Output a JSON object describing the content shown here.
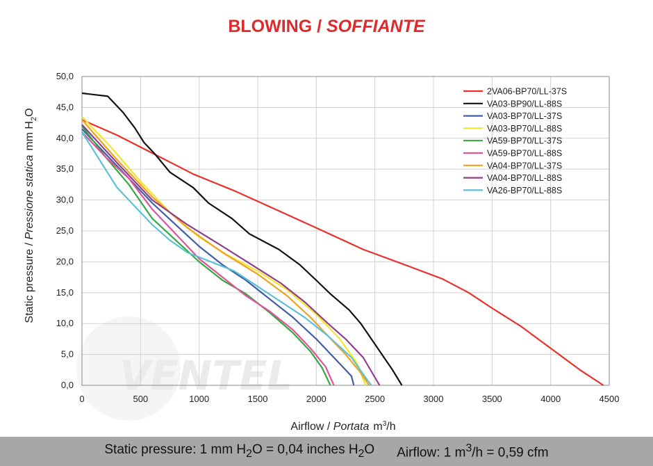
{
  "page_title": {
    "main": "BLOWING",
    "sep": " / ",
    "italic": "SOFFIANTE"
  },
  "watermark": "VENTEL",
  "footer": {
    "pressure_part1": "Static pressure: 1 mm H",
    "pressure_sub1": "2",
    "pressure_part2": "O = 0,04 inches H",
    "pressure_sub2": "2",
    "pressure_part3": "O",
    "airflow_part1": "Airflow: 1 m",
    "airflow_sup": "3",
    "airflow_part2": "/h = 0,59 cfm"
  },
  "chart_data": {
    "type": "line",
    "title": "BLOWING / SOFFIANTE",
    "xlabel": {
      "main": "Airflow",
      "sep": " / ",
      "italic": "Portata",
      "unit": "m",
      "unit_sup": "3",
      "unit_tail": "/h"
    },
    "ylabel": {
      "main": "Static pressure",
      "sep": " / ",
      "italic": "Pressione statica",
      "unit": "mm H",
      "unit_sub": "2",
      "unit_tail": "O"
    },
    "xlim": [
      0,
      4500
    ],
    "ylim": [
      0,
      50
    ],
    "xticks": [
      "0",
      "500",
      "1000",
      "1500",
      "2000",
      "2500",
      "3000",
      "3500",
      "4000",
      "4500"
    ],
    "yticks": [
      "0,0",
      "5,0",
      "10,0",
      "15,0",
      "20,0",
      "25,0",
      "30,0",
      "35,0",
      "40,0",
      "45,0",
      "50,0"
    ],
    "grid": true,
    "legend_position": "top-right",
    "series": [
      {
        "name": "2VA06-BP70/LL-37S",
        "color": "#e8312a",
        "points": [
          [
            0,
            43.0
          ],
          [
            300,
            40.5
          ],
          [
            600,
            37.6
          ],
          [
            950,
            34.2
          ],
          [
            1300,
            31.5
          ],
          [
            1650,
            28.5
          ],
          [
            2000,
            25.5
          ],
          [
            2400,
            22.0
          ],
          [
            2800,
            19.2
          ],
          [
            3080,
            17.2
          ],
          [
            3300,
            15.0
          ],
          [
            3500,
            12.5
          ],
          [
            3750,
            9.5
          ],
          [
            4000,
            6.0
          ],
          [
            4250,
            2.5
          ],
          [
            4450,
            0
          ]
        ]
      },
      {
        "name": "VA03-BP90/LL-88S",
        "color": "#111111",
        "points": [
          [
            0,
            47.3
          ],
          [
            220,
            46.8
          ],
          [
            350,
            44.2
          ],
          [
            450,
            41.7
          ],
          [
            530,
            39.3
          ],
          [
            620,
            37.5
          ],
          [
            750,
            34.5
          ],
          [
            950,
            32.0
          ],
          [
            1080,
            29.5
          ],
          [
            1280,
            27.0
          ],
          [
            1430,
            24.5
          ],
          [
            1680,
            22.0
          ],
          [
            1860,
            19.5
          ],
          [
            2000,
            17.0
          ],
          [
            2120,
            14.8
          ],
          [
            2280,
            12.2
          ],
          [
            2380,
            10.0
          ],
          [
            2470,
            7.5
          ],
          [
            2560,
            5.0
          ],
          [
            2650,
            2.5
          ],
          [
            2730,
            0
          ]
        ]
      },
      {
        "name": "VA03-BP70/LL-37S",
        "color": "#3e5ea8",
        "points": [
          [
            0,
            41.5
          ],
          [
            200,
            37.5
          ],
          [
            400,
            33.5
          ],
          [
            600,
            29.5
          ],
          [
            800,
            26.0
          ],
          [
            1000,
            22.5
          ],
          [
            1200,
            19.5
          ],
          [
            1400,
            17.0
          ],
          [
            1600,
            14.0
          ],
          [
            1800,
            11.0
          ],
          [
            2000,
            7.5
          ],
          [
            2150,
            4.5
          ],
          [
            2300,
            1.5
          ],
          [
            2320,
            0
          ]
        ]
      },
      {
        "name": "VA03-BP70/LL-88S",
        "color": "#f2e62a",
        "points": [
          [
            0,
            43.5
          ],
          [
            250,
            38.5
          ],
          [
            500,
            33.0
          ],
          [
            750,
            28.0
          ],
          [
            1000,
            24.0
          ],
          [
            1250,
            21.0
          ],
          [
            1500,
            18.5
          ],
          [
            1750,
            15.5
          ],
          [
            2000,
            11.5
          ],
          [
            2200,
            7.5
          ],
          [
            2350,
            3.5
          ],
          [
            2420,
            0
          ]
        ]
      },
      {
        "name": "VA59-BP70/LL-37S",
        "color": "#33a843",
        "points": [
          [
            0,
            42.0
          ],
          [
            200,
            37.0
          ],
          [
            400,
            32.5
          ],
          [
            600,
            27.0
          ],
          [
            800,
            23.5
          ],
          [
            1000,
            20.0
          ],
          [
            1200,
            17.0
          ],
          [
            1400,
            14.8
          ],
          [
            1600,
            11.8
          ],
          [
            1800,
            8.5
          ],
          [
            1950,
            5.5
          ],
          [
            2050,
            2.8
          ],
          [
            2120,
            0
          ]
        ]
      },
      {
        "name": "VA59-BP70/LL-88S",
        "color": "#e0529a",
        "points": [
          [
            0,
            41.0
          ],
          [
            200,
            37.0
          ],
          [
            400,
            33.5
          ],
          [
            600,
            28.5
          ],
          [
            800,
            24.5
          ],
          [
            1000,
            20.5
          ],
          [
            1200,
            17.5
          ],
          [
            1400,
            14.5
          ],
          [
            1600,
            12.0
          ],
          [
            1800,
            9.0
          ],
          [
            1950,
            6.0
          ],
          [
            2080,
            3.0
          ],
          [
            2150,
            0
          ]
        ]
      },
      {
        "name": "VA04-BP70/LL-37S",
        "color": "#f0a21e",
        "points": [
          [
            0,
            43.0
          ],
          [
            300,
            36.5
          ],
          [
            600,
            30.5
          ],
          [
            900,
            25.5
          ],
          [
            1200,
            21.5
          ],
          [
            1500,
            18.0
          ],
          [
            1750,
            14.5
          ],
          [
            1950,
            11.0
          ],
          [
            2100,
            8.0
          ],
          [
            2250,
            5.0
          ],
          [
            2380,
            2.0
          ],
          [
            2450,
            0
          ]
        ]
      },
      {
        "name": "VA04-BP70/LL-88S",
        "color": "#8e3e8f",
        "points": [
          [
            0,
            42.2
          ],
          [
            300,
            36.0
          ],
          [
            600,
            30.0
          ],
          [
            900,
            26.0
          ],
          [
            1200,
            22.5
          ],
          [
            1450,
            19.5
          ],
          [
            1700,
            16.5
          ],
          [
            1900,
            13.5
          ],
          [
            2100,
            10.0
          ],
          [
            2250,
            7.5
          ],
          [
            2400,
            4.5
          ],
          [
            2540,
            0
          ]
        ]
      },
      {
        "name": "VA26-BP70/LL-88S",
        "color": "#5bc1d8",
        "points": [
          [
            0,
            41.0
          ],
          [
            150,
            36.5
          ],
          [
            300,
            32.0
          ],
          [
            450,
            29.0
          ],
          [
            600,
            26.0
          ],
          [
            750,
            23.5
          ],
          [
            900,
            21.5
          ],
          [
            1100,
            20.0
          ],
          [
            1300,
            18.5
          ],
          [
            1500,
            16.0
          ],
          [
            1700,
            13.5
          ],
          [
            1900,
            11.0
          ],
          [
            2100,
            8.0
          ],
          [
            2300,
            4.5
          ],
          [
            2430,
            1.0
          ],
          [
            2470,
            0
          ]
        ]
      }
    ]
  }
}
